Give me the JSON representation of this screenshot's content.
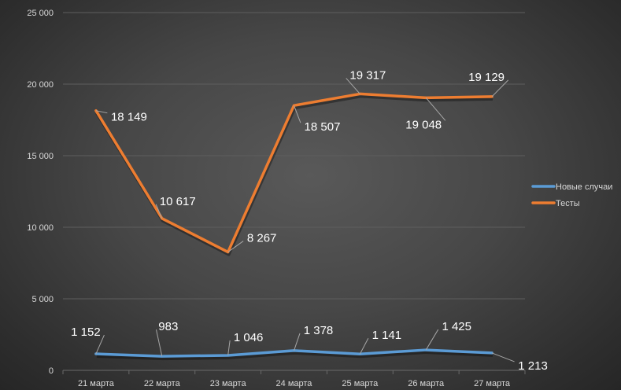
{
  "chart_data": {
    "type": "line",
    "title": "",
    "xlabel": "",
    "ylabel": "",
    "categories": [
      "21 марта",
      "22 марта",
      "23 марта",
      "24 марта",
      "25 марта",
      "26 марта",
      "27 марта"
    ],
    "ylim": [
      0,
      25000
    ],
    "yticks": [
      0,
      5000,
      10000,
      15000,
      20000,
      25000
    ],
    "ytick_labels": [
      "0",
      "5 000",
      "10 000",
      "15 000",
      "20 000",
      "25 000"
    ],
    "grid": true,
    "legend_position": "right",
    "series": [
      {
        "name": "Новые случаи",
        "color": "#5b9bd5",
        "values": [
          1152,
          983,
          1046,
          1378,
          1141,
          1425,
          1213
        ],
        "labels": [
          "1 152",
          "983",
          "1 046",
          "1 378",
          "1 141",
          "1 425",
          "1 213"
        ]
      },
      {
        "name": "Тесты",
        "color": "#ed7d31",
        "values": [
          18149,
          10617,
          8267,
          18507,
          19317,
          19048,
          19129
        ],
        "labels": [
          "18 149",
          "10 617",
          "8 267",
          "18 507",
          "19 317",
          "19 048",
          "19 129"
        ]
      }
    ]
  }
}
